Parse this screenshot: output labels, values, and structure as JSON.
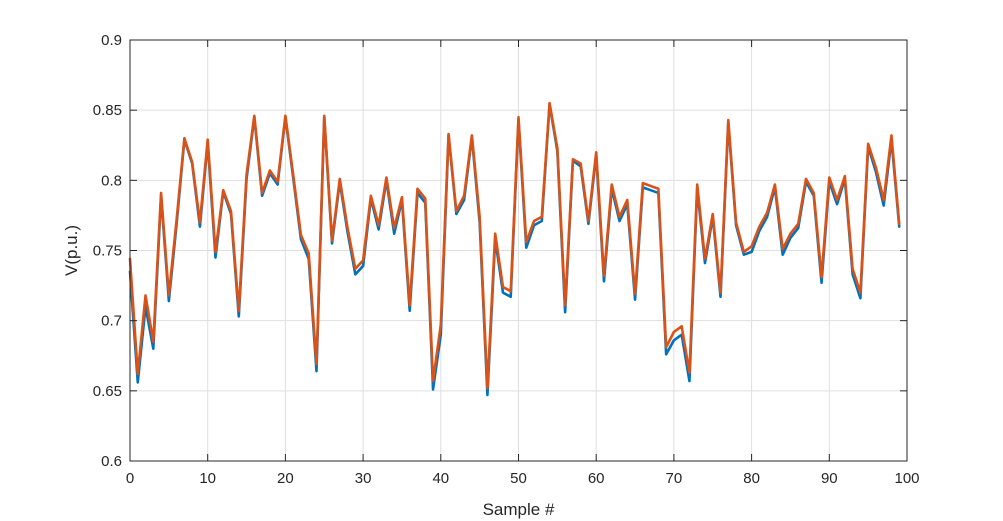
{
  "chart_data": {
    "type": "line",
    "title": "",
    "xlabel": "Sample #",
    "ylabel": "V(p.u.)",
    "xlim": [
      0,
      100
    ],
    "ylim": [
      0.6,
      0.9
    ],
    "xticks": [
      0,
      10,
      20,
      30,
      40,
      50,
      60,
      70,
      80,
      90,
      100
    ],
    "xtick_labels": [
      "0",
      "10",
      "20",
      "30",
      "40",
      "50",
      "60",
      "70",
      "80",
      "90",
      "100"
    ],
    "yticks": [
      0.6,
      0.65,
      0.7,
      0.75,
      0.8,
      0.85,
      0.9
    ],
    "ytick_labels": [
      "0.6",
      "0.65",
      "0.7",
      "0.75",
      "0.8",
      "0.85",
      "0.9"
    ],
    "grid": true,
    "series": [
      {
        "color": "#0072BD",
        "x": [
          0,
          1,
          2,
          3,
          4,
          5,
          6,
          7,
          8,
          9,
          10,
          11,
          12,
          13,
          14,
          15,
          16,
          17,
          18,
          19,
          20,
          21,
          22,
          23,
          24,
          25,
          26,
          27,
          28,
          29,
          30,
          31,
          32,
          33,
          34,
          35,
          36,
          37,
          38,
          39,
          40,
          41,
          42,
          43,
          44,
          45,
          46,
          47,
          48,
          49,
          50,
          51,
          52,
          53,
          54,
          55,
          56,
          57,
          58,
          59,
          60,
          61,
          62,
          63,
          64,
          65,
          66,
          67,
          68,
          69,
          70,
          71,
          72,
          73,
          74,
          75,
          76,
          77,
          78,
          79,
          80,
          81,
          82,
          83,
          84,
          85,
          86,
          87,
          88,
          89,
          90,
          91,
          92,
          93,
          94,
          95,
          96,
          97,
          98,
          99
        ],
        "values": [
          0.735,
          0.656,
          0.71,
          0.68,
          0.789,
          0.714,
          0.769,
          0.829,
          0.812,
          0.767,
          0.827,
          0.745,
          0.792,
          0.776,
          0.703,
          0.801,
          0.845,
          0.789,
          0.805,
          0.797,
          0.845,
          0.802,
          0.758,
          0.744,
          0.664,
          0.845,
          0.755,
          0.799,
          0.763,
          0.733,
          0.739,
          0.787,
          0.765,
          0.8,
          0.762,
          0.786,
          0.707,
          0.791,
          0.784,
          0.651,
          0.69,
          0.832,
          0.776,
          0.786,
          0.831,
          0.77,
          0.647,
          0.758,
          0.72,
          0.717,
          0.843,
          0.752,
          0.768,
          0.771,
          0.854,
          0.821,
          0.706,
          0.814,
          0.81,
          0.769,
          0.818,
          0.728,
          0.794,
          0.771,
          0.783,
          0.715,
          0.795,
          0.793,
          0.791,
          0.676,
          0.686,
          0.69,
          0.657,
          0.794,
          0.741,
          0.774,
          0.717,
          0.841,
          0.768,
          0.747,
          0.749,
          0.764,
          0.774,
          0.795,
          0.747,
          0.759,
          0.766,
          0.799,
          0.789,
          0.727,
          0.799,
          0.783,
          0.801,
          0.733,
          0.716,
          0.824,
          0.806,
          0.782,
          0.829,
          0.767
        ]
      },
      {
        "color": "#D95319",
        "x": [
          0,
          1,
          2,
          3,
          4,
          5,
          6,
          7,
          8,
          9,
          10,
          11,
          12,
          13,
          14,
          15,
          16,
          17,
          18,
          19,
          20,
          21,
          22,
          23,
          24,
          25,
          26,
          27,
          28,
          29,
          30,
          31,
          32,
          33,
          34,
          35,
          36,
          37,
          38,
          39,
          40,
          41,
          42,
          43,
          44,
          45,
          46,
          47,
          48,
          49,
          50,
          51,
          52,
          53,
          54,
          55,
          56,
          57,
          58,
          59,
          60,
          61,
          62,
          63,
          64,
          65,
          66,
          67,
          68,
          69,
          70,
          71,
          72,
          73,
          74,
          75,
          76,
          77,
          78,
          79,
          80,
          81,
          82,
          83,
          84,
          85,
          86,
          87,
          88,
          89,
          90,
          91,
          92,
          93,
          94,
          95,
          96,
          97,
          98,
          99
        ],
        "values": [
          0.744,
          0.662,
          0.718,
          0.685,
          0.791,
          0.718,
          0.772,
          0.83,
          0.813,
          0.77,
          0.829,
          0.749,
          0.793,
          0.778,
          0.707,
          0.804,
          0.846,
          0.791,
          0.807,
          0.799,
          0.846,
          0.804,
          0.761,
          0.748,
          0.669,
          0.846,
          0.757,
          0.801,
          0.766,
          0.737,
          0.743,
          0.789,
          0.768,
          0.802,
          0.766,
          0.788,
          0.711,
          0.794,
          0.787,
          0.657,
          0.697,
          0.833,
          0.778,
          0.789,
          0.832,
          0.774,
          0.652,
          0.762,
          0.724,
          0.721,
          0.845,
          0.756,
          0.771,
          0.774,
          0.855,
          0.823,
          0.711,
          0.815,
          0.812,
          0.771,
          0.82,
          0.732,
          0.797,
          0.774,
          0.786,
          0.719,
          0.798,
          0.796,
          0.794,
          0.681,
          0.692,
          0.696,
          0.663,
          0.797,
          0.744,
          0.776,
          0.72,
          0.843,
          0.77,
          0.749,
          0.753,
          0.767,
          0.777,
          0.797,
          0.751,
          0.762,
          0.769,
          0.801,
          0.791,
          0.731,
          0.802,
          0.786,
          0.803,
          0.737,
          0.72,
          0.826,
          0.809,
          0.786,
          0.832,
          0.769
        ]
      }
    ]
  }
}
